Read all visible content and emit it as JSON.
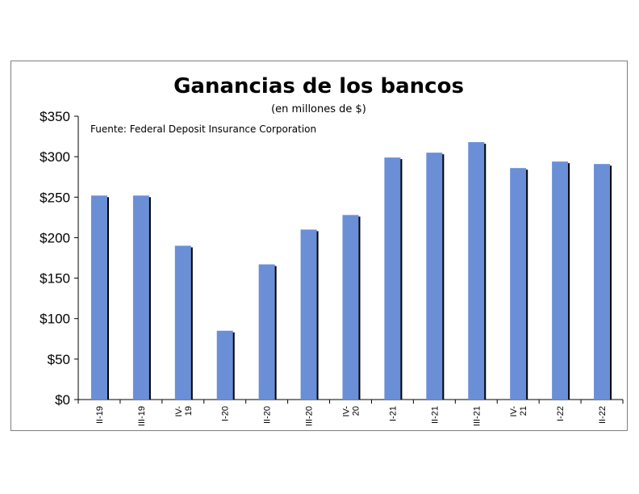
{
  "chart_data": {
    "type": "bar",
    "title": "Ganancias de los bancos",
    "subtitle": "(en millones de $)",
    "annotation": "Fuente: Federal Deposit Insurance Corporation",
    "xlabel": "",
    "ylabel": "",
    "ylim": [
      0,
      350
    ],
    "yticks": [
      0,
      50,
      100,
      150,
      200,
      250,
      300,
      350
    ],
    "ytick_labels": [
      "$0",
      "$50",
      "$100",
      "$150",
      "$200",
      "$250",
      "$300",
      "$350"
    ],
    "categories": [
      [
        "II-19"
      ],
      [
        "III-19"
      ],
      [
        "IV-",
        "19"
      ],
      [
        "I-20"
      ],
      [
        "II-20"
      ],
      [
        "III-20"
      ],
      [
        "IV-",
        "20"
      ],
      [
        "I-21"
      ],
      [
        "II-21"
      ],
      [
        "III-21"
      ],
      [
        "IV-",
        "21"
      ],
      [
        "I-22"
      ],
      [
        "II-22"
      ]
    ],
    "values": [
      252,
      252,
      190,
      85,
      167,
      210,
      228,
      299,
      305,
      318,
      286,
      294,
      291
    ],
    "bar_color": "#6a8fd6",
    "shadow_color": "#000000",
    "grid": false,
    "legend": "none"
  }
}
